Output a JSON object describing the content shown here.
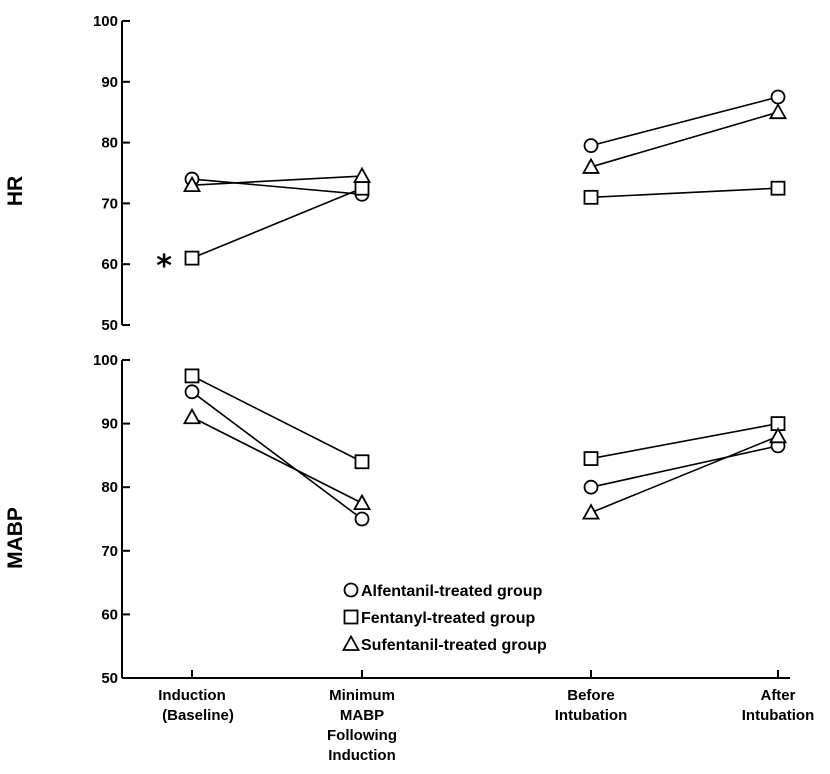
{
  "chart_data": {
    "type": "line",
    "categories": [
      [
        "Induction",
        "(Baseline)"
      ],
      [
        "Minimum",
        "MABP",
        "Following",
        "Induction"
      ],
      [
        "Before",
        "Intubation"
      ],
      [
        "After",
        "Intubation"
      ]
    ],
    "segments": [
      [
        0,
        1
      ],
      [
        2,
        3
      ]
    ],
    "panels": [
      {
        "id": "hr",
        "ylabel": "HR",
        "ylim": [
          50,
          100
        ],
        "yticks": [
          50,
          60,
          70,
          80,
          90,
          100
        ],
        "series": [
          {
            "name": "Alfentanil-treated group",
            "marker": "circle",
            "values": [
              74,
              71.5,
              79.5,
              87.5
            ]
          },
          {
            "name": "Fentanyl-treated group",
            "marker": "square",
            "values": [
              61,
              72.5,
              71,
              72.5
            ]
          },
          {
            "name": "Sufentanil-treated group",
            "marker": "triangle",
            "values": [
              73,
              74.5,
              76,
              85
            ]
          }
        ],
        "annotations": [
          {
            "text": "*",
            "category": 0,
            "series": "Fentanyl-treated group"
          }
        ]
      },
      {
        "id": "mabp",
        "ylabel": "MABP",
        "ylim": [
          50,
          100
        ],
        "yticks": [
          50,
          60,
          70,
          80,
          90,
          100
        ],
        "series": [
          {
            "name": "Alfentanil-treated group",
            "marker": "circle",
            "values": [
              95,
              75,
              80,
              86.5
            ]
          },
          {
            "name": "Fentanyl-treated group",
            "marker": "square",
            "values": [
              97.5,
              84,
              84.5,
              90
            ]
          },
          {
            "name": "Sufentanil-treated group",
            "marker": "triangle",
            "values": [
              91,
              77.5,
              76,
              88
            ]
          }
        ]
      }
    ],
    "legend": [
      {
        "marker": "circle",
        "label": "Alfentanil-treated group"
      },
      {
        "marker": "square",
        "label": "Fentanyl-treated group"
      },
      {
        "marker": "triangle",
        "label": "Sufentanil-treated group"
      }
    ],
    "grid": false
  }
}
